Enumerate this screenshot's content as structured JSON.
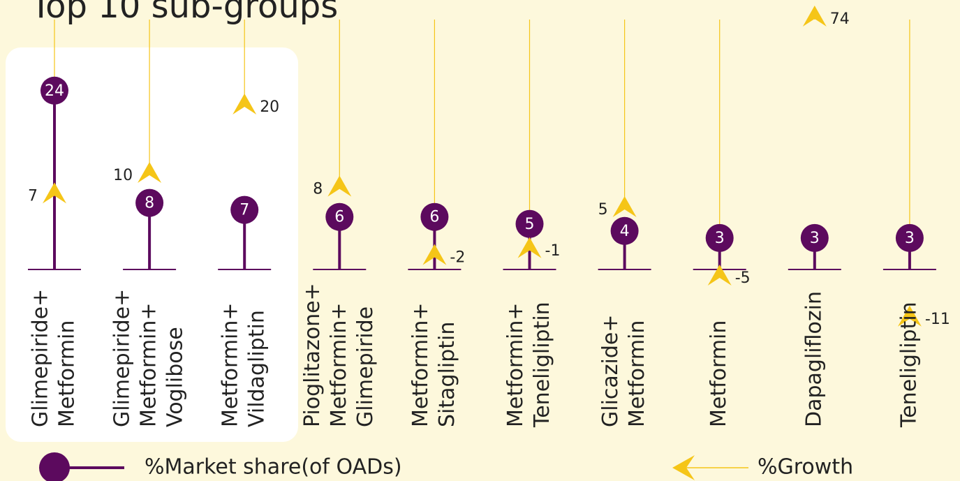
{
  "chart_data": {
    "type": "lollipop",
    "title": "Top 10 sub-groups",
    "categories": [
      [
        "Glimepiride+",
        "Metformin"
      ],
      [
        "Glimepiride+",
        "Metformin+",
        "Voglibose"
      ],
      [
        "Metformin+",
        "Vildagliptin"
      ],
      [
        "Pioglitazone+",
        "Metformin+",
        "Glimepiride"
      ],
      [
        "Metformin+",
        "Sitagliptin"
      ],
      [
        "Metformin+",
        "Teneligliptin"
      ],
      [
        "Glicazide+",
        "Metformin"
      ],
      [
        "Metformin"
      ],
      [
        "Dapagliflozin"
      ],
      [
        "Teneligliptin"
      ]
    ],
    "series": [
      {
        "name": "%Market share(of OADs)",
        "color": "#5c0a5e",
        "values": [
          24,
          8,
          7,
          6,
          6,
          5,
          4,
          3,
          3,
          3
        ]
      },
      {
        "name": "%Growth",
        "color": "#f5c518",
        "values": [
          7,
          10,
          20,
          8,
          -2,
          -1,
          5,
          -5,
          74,
          -11
        ]
      }
    ]
  }
}
